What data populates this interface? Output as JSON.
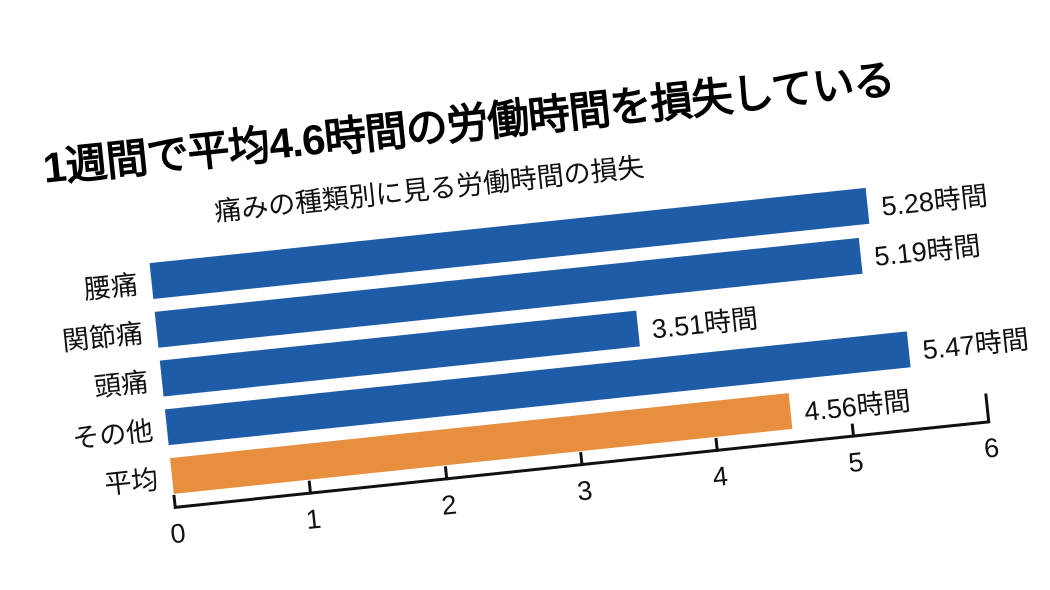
{
  "chart": {
    "title": "1週間で平均4.6時間の労働時間を損失している",
    "subtitle": "痛みの種類別に見る労働時間の損失"
  },
  "chart_data": {
    "type": "bar",
    "orientation": "horizontal",
    "title": "1週間で平均4.6時間の労働時間を損失している",
    "subtitle": "痛みの種類別に見る労働時間の損失",
    "categories": [
      "腰痛",
      "関節痛",
      "頭痛",
      "その他",
      "平均"
    ],
    "values": [
      5.28,
      5.19,
      3.51,
      5.47,
      4.56
    ],
    "value_labels": [
      "5.28時間",
      "5.19時間",
      "3.51時間",
      "5.47時間",
      "4.56時間"
    ],
    "unit": "時間",
    "xlim": [
      0,
      6
    ],
    "x_ticks": [
      0,
      1,
      2,
      3,
      4,
      5,
      6
    ],
    "bar_colors": [
      "#1E5CA8",
      "#1E5CA8",
      "#1E5CA8",
      "#1E5CA8",
      "#E78F3F"
    ],
    "default_bar_color": "#1E5CA8",
    "highlight_bar_color": "#E78F3F",
    "grid": false,
    "legend": false
  }
}
